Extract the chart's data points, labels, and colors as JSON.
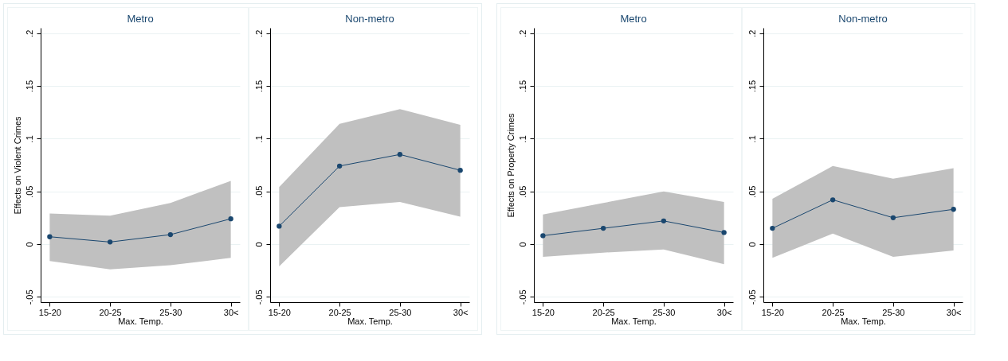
{
  "chart_data": [
    {
      "type": "line",
      "title": "Metro",
      "xlabel": "Max. Temp.",
      "ylabel": "Effects on Violent Crimes",
      "categories": [
        "15-20",
        "20-25",
        "25-30",
        "30<"
      ],
      "ylim": [
        -0.055,
        0.205
      ],
      "yticks": [
        {
          "value": -0.05,
          "label": "-.05"
        },
        {
          "value": 0,
          "label": "0"
        },
        {
          "value": 0.05,
          "label": ".05"
        },
        {
          "value": 0.1,
          "label": ".1"
        },
        {
          "value": 0.15,
          "label": ".15"
        },
        {
          "value": 0.2,
          "label": ".2"
        }
      ],
      "grid": "y",
      "marker": "circle",
      "series": [
        {
          "color": "#1a476f",
          "values": [
            0.007,
            0.002,
            0.009,
            0.024
          ],
          "lower": [
            -0.016,
            -0.024,
            -0.02,
            -0.013
          ],
          "upper": [
            0.029,
            0.027,
            0.039,
            0.06
          ]
        }
      ]
    },
    {
      "type": "line",
      "title": "Non-metro",
      "xlabel": "Max. Temp.",
      "categories": [
        "15-20",
        "20-25",
        "25-30",
        "30<"
      ],
      "ylim": [
        -0.055,
        0.205
      ],
      "yticks": [
        {
          "value": -0.05,
          "label": "-.05"
        },
        {
          "value": 0,
          "label": "0"
        },
        {
          "value": 0.05,
          "label": ".05"
        },
        {
          "value": 0.1,
          "label": ".1"
        },
        {
          "value": 0.15,
          "label": ".15"
        },
        {
          "value": 0.2,
          "label": ".2"
        }
      ],
      "grid": "y",
      "marker": "circle",
      "series": [
        {
          "color": "#1a476f",
          "values": [
            0.017,
            0.074,
            0.085,
            0.07
          ],
          "lower": [
            -0.021,
            0.035,
            0.04,
            0.026
          ],
          "upper": [
            0.054,
            0.114,
            0.128,
            0.113
          ]
        }
      ]
    },
    {
      "type": "line",
      "title": "Metro",
      "xlabel": "Max. Temp.",
      "ylabel": "Effects on Property Crimes",
      "categories": [
        "15-20",
        "20-25",
        "25-30",
        "30<"
      ],
      "ylim": [
        -0.055,
        0.205
      ],
      "yticks": [
        {
          "value": -0.05,
          "label": "-.05"
        },
        {
          "value": 0,
          "label": "0"
        },
        {
          "value": 0.05,
          "label": ".05"
        },
        {
          "value": 0.1,
          "label": ".1"
        },
        {
          "value": 0.15,
          "label": ".15"
        },
        {
          "value": 0.2,
          "label": ".2"
        }
      ],
      "grid": "y",
      "marker": "circle",
      "series": [
        {
          "color": "#1a476f",
          "values": [
            0.008,
            0.015,
            0.022,
            0.011
          ],
          "lower": [
            -0.012,
            -0.008,
            -0.005,
            -0.019
          ],
          "upper": [
            0.028,
            0.039,
            0.05,
            0.04
          ]
        }
      ]
    },
    {
      "type": "line",
      "title": "Non-metro",
      "xlabel": "Max. Temp.",
      "categories": [
        "15-20",
        "20-25",
        "25-30",
        "30<"
      ],
      "ylim": [
        -0.055,
        0.205
      ],
      "yticks": [
        {
          "value": -0.05,
          "label": "-.05"
        },
        {
          "value": 0,
          "label": "0"
        },
        {
          "value": 0.05,
          "label": ".05"
        },
        {
          "value": 0.1,
          "label": ".1"
        },
        {
          "value": 0.15,
          "label": ".15"
        },
        {
          "value": 0.2,
          "label": ".2"
        }
      ],
      "grid": "y",
      "marker": "circle",
      "series": [
        {
          "color": "#1a476f",
          "values": [
            0.015,
            0.042,
            0.025,
            0.033
          ],
          "lower": [
            -0.013,
            0.01,
            -0.012,
            -0.006
          ],
          "upper": [
            0.043,
            0.074,
            0.062,
            0.072
          ]
        }
      ]
    }
  ]
}
